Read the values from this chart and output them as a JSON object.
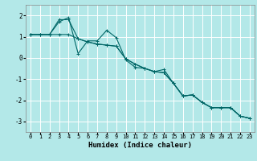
{
  "title": "",
  "xlabel": "Humidex (Indice chaleur)",
  "ylabel": "",
  "background_color": "#b3e8e8",
  "grid_color": "#ffffff",
  "line_color": "#006666",
  "xlim": [
    -0.5,
    23.5
  ],
  "ylim": [
    -3.5,
    2.5
  ],
  "yticks": [
    -3,
    -2,
    -1,
    0,
    1,
    2
  ],
  "xticks": [
    0,
    1,
    2,
    3,
    4,
    5,
    6,
    7,
    8,
    9,
    10,
    11,
    12,
    13,
    14,
    15,
    16,
    17,
    18,
    19,
    20,
    21,
    22,
    23
  ],
  "series": [
    [
      1.1,
      1.1,
      1.1,
      1.7,
      1.9,
      0.2,
      0.8,
      0.8,
      1.3,
      0.95,
      -0.1,
      -0.45,
      -0.5,
      -0.65,
      -0.55,
      -1.2,
      -1.8,
      -1.75,
      -2.1,
      -2.35,
      -2.35,
      -2.35,
      -2.75,
      -2.85
    ],
    [
      1.1,
      1.1,
      1.1,
      1.8,
      1.8,
      0.9,
      0.75,
      0.65,
      0.6,
      0.55,
      -0.05,
      -0.3,
      -0.5,
      -0.65,
      -0.7,
      -1.2,
      -1.8,
      -1.75,
      -2.1,
      -2.35,
      -2.35,
      -2.35,
      -2.75,
      -2.85
    ],
    [
      1.1,
      1.1,
      1.1,
      1.1,
      1.1,
      0.9,
      0.75,
      0.65,
      0.6,
      0.55,
      -0.05,
      -0.3,
      -0.5,
      -0.65,
      -0.7,
      -1.2,
      -1.8,
      -1.75,
      -2.1,
      -2.35,
      -2.35,
      -2.35,
      -2.75,
      -2.85
    ]
  ],
  "xlabel_fontsize": 6.5,
  "tick_fontsize": 5.0
}
